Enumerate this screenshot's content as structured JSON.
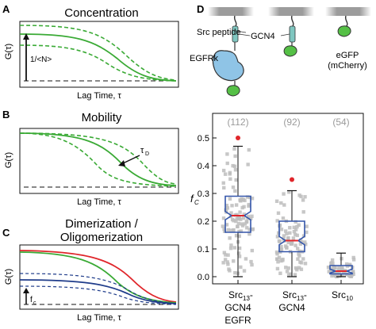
{
  "panels": {
    "A": {
      "letter": "A",
      "title": "Concentration",
      "ylabel": "G(τ)",
      "xlabel": "Lag Time, τ",
      "annotation": "1/<N>"
    },
    "B": {
      "letter": "B",
      "title": "Mobility",
      "ylabel": "G(τ)",
      "xlabel": "Lag Time, τ",
      "annotation": "τ",
      "annotation_sub": "D"
    },
    "C": {
      "letter": "C",
      "title_line1": "Dimerization /",
      "title_line2": "Oligomerization",
      "ylabel": "G(τ)",
      "xlabel": "Lag Time, τ",
      "annotation": "f",
      "annotation_sub": "c"
    },
    "D": {
      "letter": "D",
      "labels": {
        "src_peptide": "Src peptide",
        "gcn4": "GCN4",
        "egfrk": "EGFRk",
        "egfp_line1": "eGFP",
        "egfp_line2": "(mCherry)"
      }
    }
  },
  "colors": {
    "green": "#3aaa35",
    "red": "#e0262b",
    "navy": "#1f3c8a",
    "box": "#3355aa",
    "median": "#e0262b",
    "points": "#bdbdbd",
    "cell": "#8fc4e6",
    "gfp": "#55c046"
  },
  "chart_data": {
    "type": "box",
    "ylabel": "f",
    "ylabel_sub": "C",
    "ylim": [
      0,
      0.55
    ],
    "yticks": [
      "0.0",
      "0.1",
      "0.2",
      "0.3",
      "0.4",
      "0.5"
    ],
    "grid": false,
    "categories": [
      {
        "line1": "Src",
        "line1_sub": "13",
        "line1_tail": "-",
        "line2": "GCN4",
        "line3": "EGFR"
      },
      {
        "line1": "Src",
        "line1_sub": "13",
        "line1_tail": "-",
        "line2": "GCN4",
        "line3": ""
      },
      {
        "line1": "Src",
        "line1_sub": "10",
        "line1_tail": "",
        "line2": "",
        "line3": ""
      }
    ],
    "counts": [
      "(112)",
      "(92)",
      "(54)"
    ],
    "boxes": [
      {
        "whisker_low": 0.0,
        "q1": 0.16,
        "median": 0.22,
        "q3": 0.29,
        "whisker_high": 0.47,
        "notch_low": 0.205,
        "notch_high": 0.235,
        "outliers": [
          0.5
        ]
      },
      {
        "whisker_low": 0.0,
        "q1": 0.09,
        "median": 0.13,
        "q3": 0.2,
        "whisker_high": 0.31,
        "notch_low": 0.115,
        "notch_high": 0.145,
        "outliers": [
          0.35
        ]
      },
      {
        "whisker_low": 0.0,
        "q1": 0.01,
        "median": 0.02,
        "q3": 0.04,
        "whisker_high": 0.085,
        "notch_low": 0.013,
        "notch_high": 0.027,
        "outliers": []
      }
    ]
  }
}
